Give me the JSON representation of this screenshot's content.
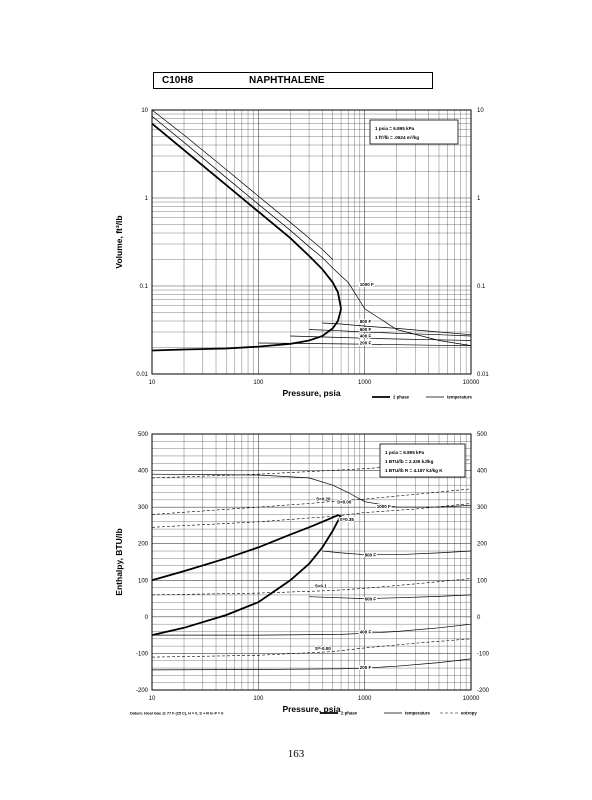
{
  "page": {
    "formula": "C10H8",
    "name": "NAPHTHALENE",
    "page_number": "163"
  },
  "chart_data": [
    {
      "type": "line",
      "ylabel": "Volume, ft^3/lb",
      "xlabel": "Pressure,  psia",
      "x_scale": "log",
      "y_scale": "log",
      "xlim": [
        10,
        10000
      ],
      "ylim": [
        0.01,
        10
      ],
      "x_ticks": [
        "10",
        "100",
        "1000",
        "10000"
      ],
      "y_ticks": [
        "0.01",
        "0.1",
        "1",
        "10"
      ],
      "y_ticks_right": [
        "0.01",
        "0.1",
        "1",
        "10"
      ],
      "grid": true,
      "info_box": [
        "1 psia  =  6.895 kPa",
        "1 ft^3/lb  =  .0624 m^3/kg"
      ],
      "legend": [
        "2 phase",
        "temperature"
      ],
      "legend_placement": "bottom-right",
      "series": [
        {
          "kind": "phase",
          "x": [
            10,
            20,
            50,
            100,
            200,
            300,
            400,
            500,
            560,
            600
          ],
          "y": [
            0.0185,
            0.019,
            0.0195,
            0.0205,
            0.022,
            0.024,
            0.027,
            0.033,
            0.04,
            0.055
          ]
        },
        {
          "kind": "phase",
          "x": [
            10,
            20,
            50,
            100,
            200,
            300,
            400,
            500,
            560,
            600
          ],
          "y": [
            7.0,
            3.5,
            1.4,
            0.7,
            0.35,
            0.22,
            0.155,
            0.11,
            0.085,
            0.055
          ]
        },
        {
          "kind": "temperature",
          "x": [
            10,
            20,
            50,
            100,
            200,
            300,
            400,
            500,
            600,
            700,
            800,
            1000,
            2000,
            5000,
            10000
          ],
          "y": [
            8.5,
            4.3,
            1.7,
            0.85,
            0.43,
            0.28,
            0.21,
            0.16,
            0.13,
            0.11,
            0.085,
            0.055,
            0.032,
            0.024,
            0.021
          ]
        },
        {
          "kind": "temperature",
          "x": [
            10,
            20,
            50,
            100,
            200,
            300,
            400,
            500
          ],
          "y": [
            10,
            5.2,
            2.1,
            1.05,
            0.53,
            0.35,
            0.26,
            0.2
          ]
        },
        {
          "kind": "temperature",
          "x": [
            400,
            600,
            1000,
            2000,
            5000,
            10000
          ],
          "y": [
            0.038,
            0.037,
            0.035,
            0.033,
            0.03,
            0.028
          ]
        },
        {
          "kind": "temperature",
          "x": [
            300,
            600,
            1000,
            2000,
            5000,
            10000
          ],
          "y": [
            0.032,
            0.031,
            0.03,
            0.029,
            0.028,
            0.027
          ]
        },
        {
          "kind": "temperature",
          "x": [
            200,
            600,
            1000,
            2000,
            5000,
            10000
          ],
          "y": [
            0.027,
            0.026,
            0.0255,
            0.025,
            0.0245,
            0.024
          ]
        },
        {
          "kind": "temperature",
          "x": [
            100,
            600,
            1000,
            2000,
            5000,
            10000
          ],
          "y": [
            0.0225,
            0.022,
            0.0218,
            0.0215,
            0.0212,
            0.021
          ]
        }
      ],
      "curve_labels": [
        {
          "text": "1000 F",
          "x": 900,
          "y": 0.1
        },
        {
          "text": "800 F",
          "x": 900,
          "y": 0.038
        },
        {
          "text": "600 F",
          "x": 900,
          "y": 0.031
        },
        {
          "text": "400 F",
          "x": 900,
          "y": 0.026
        },
        {
          "text": "200 F",
          "x": 900,
          "y": 0.0215
        }
      ]
    },
    {
      "type": "line",
      "ylabel": "Enthalpy, BTU/lb",
      "xlabel": "Pressure,  psia",
      "x_scale": "log",
      "y_scale": "linear",
      "xlim": [
        10,
        10000
      ],
      "ylim": [
        -200,
        500
      ],
      "x_ticks": [
        "10",
        "100",
        "1000",
        "10000"
      ],
      "y_ticks": [
        "-200",
        "-100",
        "0",
        "100",
        "200",
        "300",
        "400",
        "500"
      ],
      "y_ticks_right": [
        "-200",
        "-100",
        "0",
        "100",
        "200",
        "300",
        "400",
        "500"
      ],
      "grid": true,
      "info_box": [
        "1 psia  =  6.895 kPa",
        "1 BTU/lb  =  2.326 kJ/kg",
        "1 BTU/lb R  =  4.187 kJ/kg K"
      ],
      "legend": [
        "2 phase",
        "temperature",
        "entropy"
      ],
      "legend_placement": "bottom-right",
      "datum_note": "Datum: Ideal Gas @ 77 F (25 C),  H = 0,  S + R ln P = 0",
      "series": [
        {
          "kind": "phase",
          "x": [
            10,
            20,
            50,
            100,
            200,
            300,
            400,
            500,
            560,
            600
          ],
          "y": [
            100,
            125,
            160,
            190,
            225,
            245,
            260,
            272,
            278,
            275
          ]
        },
        {
          "kind": "phase",
          "x": [
            10,
            20,
            50,
            100,
            200,
            300,
            400,
            500,
            560,
            600
          ],
          "y": [
            -50,
            -30,
            5,
            40,
            100,
            145,
            190,
            235,
            262,
            275
          ]
        },
        {
          "kind": "temperature",
          "x": [
            10,
            100,
            300,
            500,
            700,
            1000,
            2000,
            5000,
            10000
          ],
          "y": [
            390,
            388,
            380,
            360,
            340,
            315,
            300,
            300,
            305
          ]
        },
        {
          "kind": "temperature",
          "x": [
            400,
            600,
            1000,
            2000,
            5000,
            10000
          ],
          "y": [
            180,
            175,
            170,
            170,
            175,
            180
          ]
        },
        {
          "kind": "temperature",
          "x": [
            300,
            600,
            1000,
            2000,
            5000,
            10000
          ],
          "y": [
            55,
            52,
            50,
            52,
            56,
            60
          ]
        },
        {
          "kind": "temperature",
          "x": [
            10,
            100,
            600,
            1000,
            2000,
            5000,
            10000
          ],
          "y": [
            -50,
            -50,
            -48,
            -45,
            -40,
            -30,
            -20
          ]
        },
        {
          "kind": "temperature",
          "x": [
            10,
            100,
            600,
            1000,
            2000,
            5000,
            10000
          ],
          "y": [
            -145,
            -144,
            -142,
            -140,
            -135,
            -125,
            -115
          ]
        },
        {
          "kind": "entropy",
          "x": [
            10,
            100,
            300,
            600,
            1000,
            3000,
            10000
          ],
          "y": [
            280,
            300,
            310,
            318,
            322,
            335,
            350
          ]
        },
        {
          "kind": "entropy",
          "x": [
            10,
            100,
            1000,
            3000,
            10000
          ],
          "y": [
            380,
            390,
            405,
            415,
            430
          ]
        },
        {
          "kind": "entropy",
          "x": [
            10,
            100,
            500,
            1000,
            3000,
            10000
          ],
          "y": [
            245,
            260,
            275,
            285,
            295,
            310
          ]
        },
        {
          "kind": "entropy",
          "x": [
            10,
            100,
            500,
            1000,
            3000,
            10000
          ],
          "y": [
            60,
            65,
            72,
            78,
            90,
            105
          ]
        },
        {
          "kind": "entropy",
          "x": [
            10,
            100,
            500,
            1000,
            3000,
            10000
          ],
          "y": [
            -110,
            -105,
            -95,
            -85,
            -72,
            -60
          ]
        }
      ],
      "curve_labels": [
        {
          "text": "S=0.20",
          "x": 350,
          "y": 318
        },
        {
          "text": "S=0.00",
          "x": 550,
          "y": 310
        },
        {
          "text": "1000 F",
          "x": 1300,
          "y": 298
        },
        {
          "text": "S=0.35",
          "x": 580,
          "y": 262
        },
        {
          "text": "800 F",
          "x": 1000,
          "y": 165
        },
        {
          "text": "S=0.1",
          "x": 340,
          "y": 80
        },
        {
          "text": "600 F",
          "x": 1000,
          "y": 45
        },
        {
          "text": "400 F",
          "x": 900,
          "y": -45
        },
        {
          "text": "S=-0.00",
          "x": 340,
          "y": -90
        },
        {
          "text": "200 F",
          "x": 900,
          "y": -142
        }
      ]
    }
  ]
}
